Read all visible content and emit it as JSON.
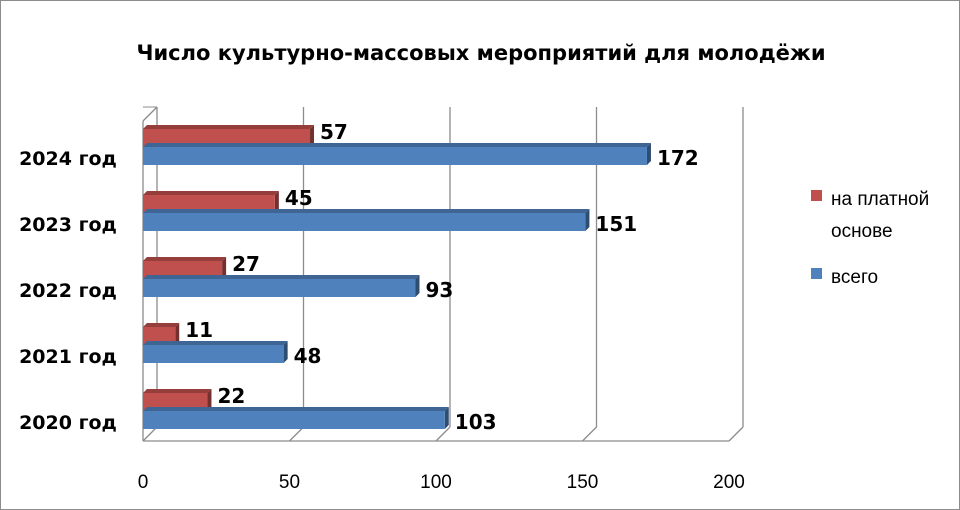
{
  "chart_data": {
    "type": "bar",
    "orientation": "horizontal",
    "title": "Число культурно-массовых мероприятий  для молодёжи",
    "categories": [
      "2020 год",
      "2021 год",
      "2022 год",
      "2023 год",
      "2024 год"
    ],
    "series": [
      {
        "name": "на платной основе",
        "name_lines": [
          "на платной",
          "основе"
        ],
        "values": [
          22,
          11,
          27,
          45,
          57
        ],
        "color": "#c0504d"
      },
      {
        "name": "всего",
        "name_lines": [
          "всего"
        ],
        "values": [
          103,
          48,
          93,
          151,
          172
        ],
        "color": "#4f81bd"
      }
    ],
    "xlim": [
      0,
      200
    ],
    "xticks": [
      "0",
      "50",
      "100",
      "150",
      "200"
    ],
    "xlabel": "",
    "ylabel": "",
    "grid": true,
    "legend": "right",
    "three_d": true
  }
}
